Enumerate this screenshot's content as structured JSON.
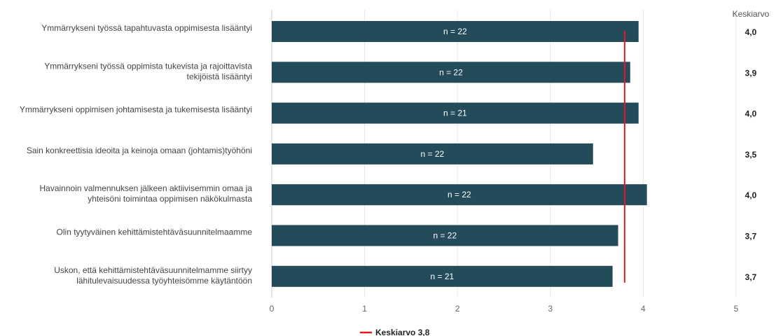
{
  "chart_data": {
    "type": "bar",
    "orientation": "horizontal",
    "categories": [
      [
        "Ymmärrykseni työssä tapahtuvasta oppimisesta lisääntyi"
      ],
      [
        "Ymmärrykseni työssä oppimista tukevista ja rajoittavista",
        "tekijöistä lisääntyi"
      ],
      [
        "Ymmärrykseni oppimisen johtamisesta ja tukemisesta lisääntyi"
      ],
      [
        "Sain konkreettisia ideoita ja keinoja omaan (johtamis)työhöni"
      ],
      [
        "Havainnoin valmennuksen jälkeen aktiivisemmin omaa ja",
        "yhteisöni toimintaa oppimisen näkökulmasta"
      ],
      [
        "Olin tyytyväinen kehittämistehtäväsuunnitelmaamme"
      ],
      [
        "Uskon, että kehittämistehtäväsuunnitelmamme siirtyy",
        "lähitulevaisuudessa työyhteisömme käytäntöön"
      ]
    ],
    "values": [
      3.95,
      3.86,
      3.95,
      3.46,
      4.04,
      3.73,
      3.67
    ],
    "n_labels": [
      "n = 22",
      "n = 22",
      "n = 21",
      "n = 22",
      "n = 22",
      "n = 22",
      "n = 21"
    ],
    "mean_labels": [
      "4,0",
      "3,9",
      "4,0",
      "3,5",
      "4,0",
      "3,7",
      "3,7"
    ],
    "mean_column_header": "Keskiarvo",
    "xlim": [
      0,
      5
    ],
    "xticks": [
      "0",
      "1",
      "2",
      "3",
      "4",
      "5"
    ],
    "reference_line": {
      "value": 3.8,
      "label": "Keskiarvo 3,8",
      "color": "#e8191e"
    },
    "bar_color": "#234b5a",
    "grid": true,
    "legend_position": "bottom-center"
  }
}
